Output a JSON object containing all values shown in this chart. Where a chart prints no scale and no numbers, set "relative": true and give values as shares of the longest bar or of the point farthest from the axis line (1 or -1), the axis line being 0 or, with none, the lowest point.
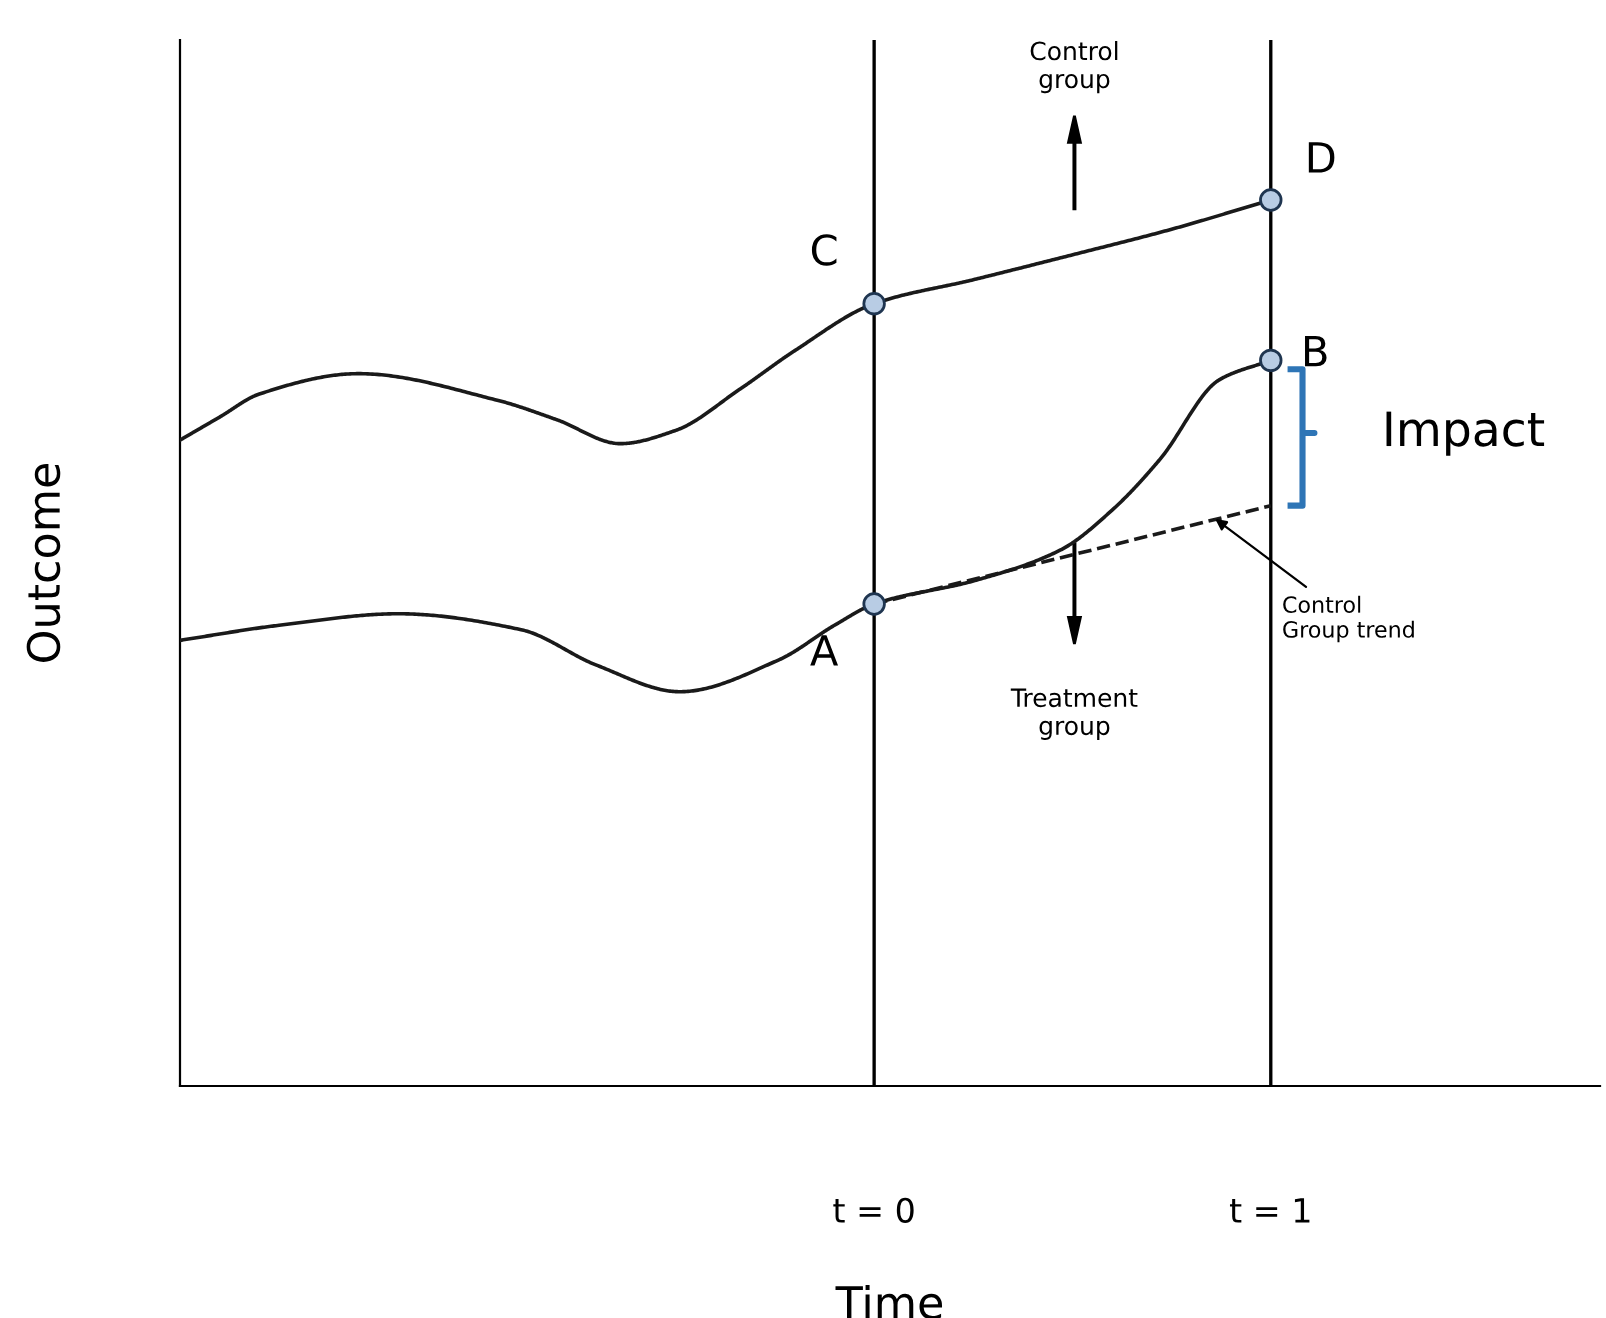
{
  "chart_data": {
    "type": "line",
    "relative": true,
    "xlabel": "Time",
    "ylabel": "Outcome",
    "xlim": [
      -1.75,
      1.83
    ],
    "xticks": [
      {
        "value": 0,
        "label": "t = 0"
      },
      {
        "value": 1,
        "label": "t = 1"
      }
    ],
    "tick_labels": "x",
    "marker": "none",
    "ref_lines": [
      {
        "axis": "x",
        "value": 0,
        "color": "#000000"
      },
      {
        "axis": "x",
        "value": 1,
        "color": "#000000"
      }
    ],
    "series": [
      {
        "color": "#1a1a1a",
        "line_style": "solid",
        "x": [
          -1.75,
          -1.65,
          -1.55,
          -1.3,
          -0.95,
          -0.8,
          -0.64,
          -0.5,
          -0.34,
          -0.2,
          0,
          0.25,
          0.49,
          0.75,
          1
        ],
        "values": [
          0.729,
          0.755,
          0.781,
          0.804,
          0.774,
          0.752,
          0.725,
          0.74,
          0.786,
          0.83,
          0.883,
          0.91,
          0.937,
          0.967,
          1.0
        ]
      },
      {
        "color": "#1a1a1a",
        "line_style": "solid",
        "x": [
          -1.75,
          -1.5,
          -1.2,
          -0.89,
          -0.7,
          -0.49,
          -0.24,
          -0.1,
          0,
          0.25,
          0.47,
          0.6,
          0.72,
          0.87,
          1
        ],
        "values": [
          0.503,
          0.52,
          0.533,
          0.515,
          0.475,
          0.445,
          0.481,
          0.52,
          0.544,
          0.57,
          0.605,
          0.65,
          0.707,
          0.797,
          0.819
        ]
      },
      {
        "color": "#1a1a1a",
        "line_style": "dashed",
        "x": [
          0,
          1
        ],
        "values": [
          0.544,
          0.655
        ]
      },
      {
        "type": "scatter",
        "color": "#b8cce4",
        "marker": "circle",
        "x": [
          0,
          1,
          0,
          1
        ],
        "values": [
          0.544,
          0.819,
          0.883,
          1.0
        ]
      }
    ],
    "annotations": [
      {
        "text": "A",
        "x": 0,
        "y": 0.544
      },
      {
        "text": "B",
        "x": 1,
        "y": 0.819
      },
      {
        "text": "C",
        "x": 0,
        "y": 0.883
      },
      {
        "text": "D",
        "x": 1,
        "y": 1.0
      },
      {
        "text": "Impact",
        "x": 1,
        "y": 0.737
      },
      "Control\ngroup",
      "Treatment\ngroup",
      {
        "text": "Control\nGroup trend",
        "x": 0.86,
        "y": 0.64
      }
    ]
  }
}
